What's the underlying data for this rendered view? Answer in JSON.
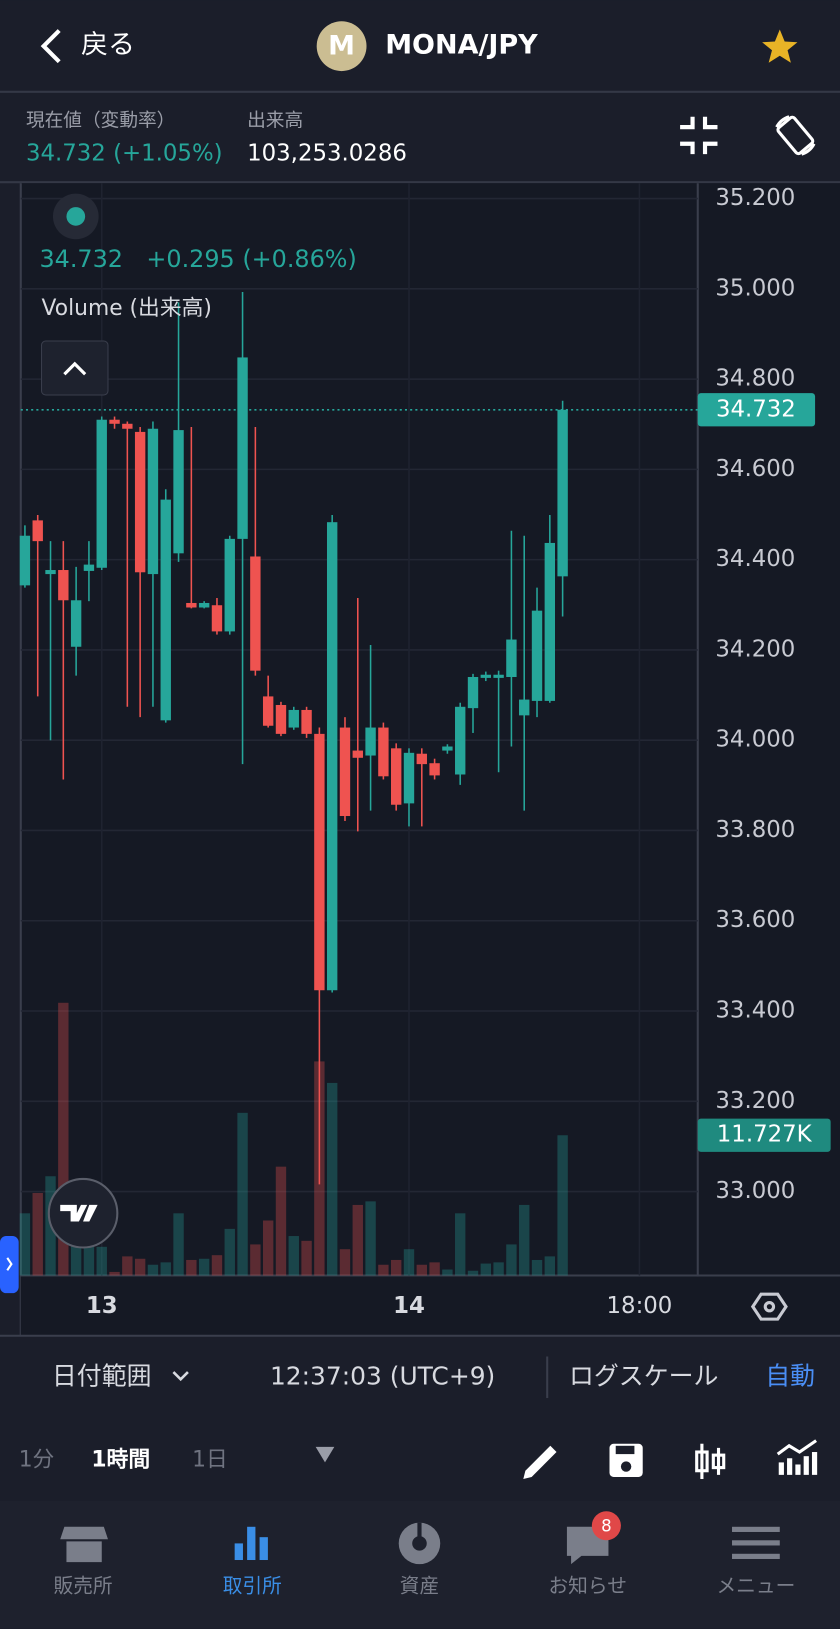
{
  "header": {
    "back": "戻る",
    "logo": "M",
    "pair": "MONA/JPY"
  },
  "summary": {
    "price_label": "現在値（変動率）",
    "price": "34.732 (+1.05%)",
    "volume_label": "出来高",
    "volume": "103,253.0286"
  },
  "chart_data": {
    "type": "candlestick",
    "legend_price": "34.732",
    "legend_change": "+0.295 (+0.86%)",
    "volume_title": "Volume (出来高)",
    "open": [
      34.343,
      34.487,
      34.368,
      34.377,
      34.207,
      34.375,
      34.382,
      34.71,
      34.701,
      34.683,
      34.368,
      34.044,
      34.414,
      34.304,
      34.294,
      34.299,
      34.241,
      34.446,
      34.407,
      34.097,
      34.078,
      34.028,
      34.067,
      34.014,
      33.446,
      34.028,
      33.977,
      33.966,
      34.028,
      33.982,
      33.86,
      33.97,
      33.949,
      33.977,
      33.924,
      34.071,
      34.138,
      34.138,
      34.14,
      34.055,
      34.087,
      34.087,
      34.363
    ],
    "high": [
      34.476,
      34.499,
      34.441,
      34.441,
      34.384,
      34.441,
      34.717,
      34.717,
      34.706,
      34.694,
      34.706,
      34.556,
      34.97,
      34.694,
      34.308,
      34.315,
      34.453,
      34.993,
      34.694,
      34.143,
      34.085,
      34.074,
      34.074,
      34.028,
      34.499,
      34.051,
      34.315,
      34.211,
      34.039,
      33.993,
      33.982,
      33.982,
      33.959,
      33.991,
      34.083,
      34.147,
      34.152,
      34.154,
      34.464,
      34.453,
      34.338,
      34.499,
      34.752
    ],
    "low": [
      34.338,
      34.097,
      34.0,
      33.913,
      34.143,
      34.308,
      34.377,
      34.69,
      34.074,
      34.051,
      34.074,
      34.039,
      34.395,
      34.292,
      34.292,
      34.234,
      34.234,
      33.947,
      34.143,
      34.028,
      34.009,
      34.023,
      34.005,
      33.016,
      33.441,
      33.821,
      33.798,
      33.844,
      33.913,
      33.844,
      33.809,
      33.809,
      33.913,
      33.97,
      33.901,
      34.016,
      34.131,
      33.929,
      33.986,
      33.844,
      34.051,
      34.083,
      34.274
    ],
    "close": [
      34.453,
      34.441,
      34.377,
      34.31,
      34.31,
      34.389,
      34.71,
      34.701,
      34.69,
      34.372,
      34.69,
      34.533,
      34.687,
      34.294,
      34.304,
      34.241,
      34.446,
      34.848,
      34.154,
      34.032,
      34.014,
      34.067,
      34.014,
      33.446,
      34.483,
      33.832,
      33.961,
      34.028,
      33.92,
      33.857,
      33.972,
      33.947,
      33.922,
      33.986,
      34.074,
      34.14,
      34.145,
      34.145,
      34.223,
      34.09,
      34.287,
      34.437,
      34.732
    ],
    "volume": [
      5.2,
      6.9,
      8.3,
      22.8,
      4.2,
      3.5,
      2.4,
      0.3,
      1.6,
      1.4,
      0.9,
      1.1,
      5.2,
      1.3,
      1.4,
      1.7,
      3.9,
      13.6,
      2.6,
      4.6,
      9.1,
      3.3,
      2.9,
      17.9,
      16.1,
      2.2,
      5.9,
      6.2,
      0.9,
      1.3,
      2.2,
      0.9,
      1.1,
      0.5,
      5.2,
      0.4,
      1.0,
      1.1,
      2.6,
      5.9,
      1.3,
      1.6,
      11.727
    ],
    "ylim": [
      32.814,
      35.234
    ],
    "yticks": [
      {
        "value": 35.2,
        "label": "35.200"
      },
      {
        "value": 35.0,
        "label": "35.000"
      },
      {
        "value": 34.8,
        "label": "34.800"
      },
      {
        "value": 34.6,
        "label": "34.600"
      },
      {
        "value": 34.4,
        "label": "34.400"
      },
      {
        "value": 34.2,
        "label": "34.200"
      },
      {
        "value": 34.0,
        "label": "34.000"
      },
      {
        "value": 33.8,
        "label": "33.800"
      },
      {
        "value": 33.6,
        "label": "33.600"
      },
      {
        "value": 33.4,
        "label": "33.400"
      },
      {
        "value": 33.2,
        "label": "33.200"
      },
      {
        "value": 33.0,
        "label": "33.000"
      }
    ],
    "xticks": [
      {
        "value": 6,
        "label": "13"
      },
      {
        "value": 30,
        "label": "14"
      },
      {
        "value": 48,
        "label": "18:00"
      }
    ],
    "y2lim": [
      0,
      25
    ],
    "last_price": {
      "value": 34.732,
      "label": "34.732"
    },
    "last_volume": {
      "value": 11.727,
      "label": "11.727K"
    },
    "colors": {
      "up": "#26a69a",
      "down": "#ef5350"
    },
    "grid": true
  },
  "footer": {
    "date_range": "日付範囲",
    "time": "12:37:03 (UTC+9)",
    "log_scale": "ログスケール",
    "auto": "自動"
  },
  "timeframes": [
    "1分",
    "1時間",
    "1日"
  ],
  "nav": [
    "販売所",
    "取引所",
    "資産",
    "お知らせ",
    "メニュー"
  ],
  "notification_badge": 8
}
